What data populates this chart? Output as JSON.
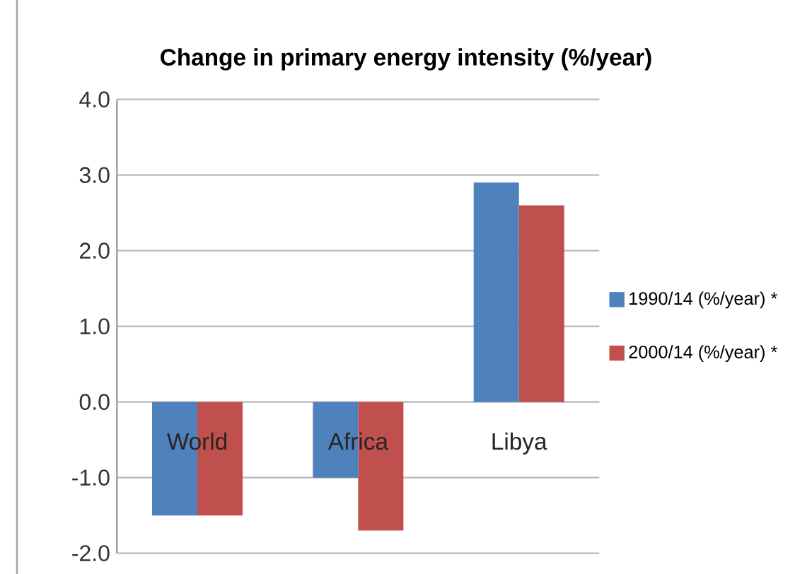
{
  "chart_data": {
    "type": "bar",
    "title": "Change in primary energy intensity (%/year)",
    "categories": [
      "World",
      "Africa",
      "Libya"
    ],
    "series": [
      {
        "name": "1990/14 (%/year) *",
        "color": "#4f81bd",
        "values": [
          -1.5,
          -1.0,
          2.9
        ]
      },
      {
        "name": "2000/14 (%/year) *",
        "color": "#c0504d",
        "values": [
          -1.5,
          -1.7,
          2.6
        ]
      }
    ],
    "ylim": [
      -2,
      4
    ],
    "yticks": [
      {
        "value": -2,
        "label": "-2.0"
      },
      {
        "value": -1,
        "label": "-1.0"
      },
      {
        "value": 0,
        "label": "0.0"
      },
      {
        "value": 1,
        "label": "1.0"
      },
      {
        "value": 2,
        "label": "2.0"
      },
      {
        "value": 3,
        "label": "3.0"
      },
      {
        "value": 4,
        "label": "4.0"
      }
    ],
    "grid": "y",
    "legend": "right"
  }
}
